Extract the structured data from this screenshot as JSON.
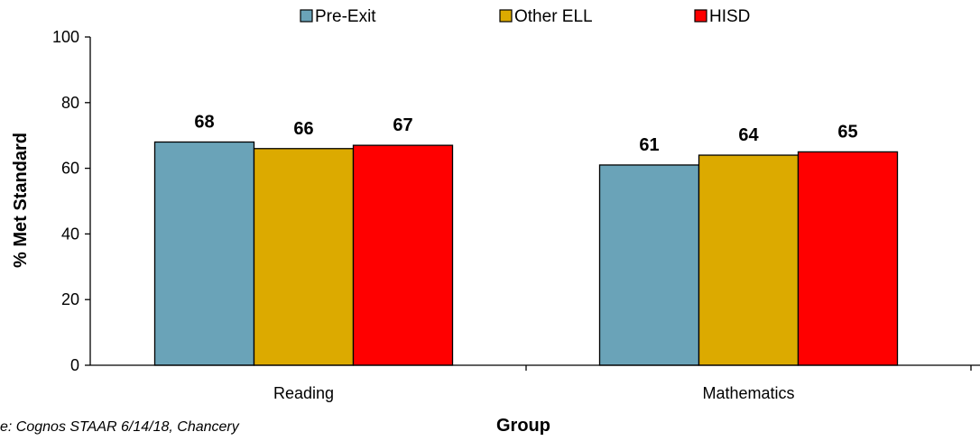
{
  "chart_data": {
    "type": "bar",
    "categories": [
      "Reading",
      "Mathematics"
    ],
    "series": [
      {
        "name": "Pre-Exit",
        "values": [
          68,
          61
        ],
        "color": "#6aa3b8"
      },
      {
        "name": "Other ELL",
        "values": [
          66,
          64
        ],
        "color": "#dcaa00"
      },
      {
        "name": "HISD",
        "values": [
          67,
          65
        ],
        "color": "#ff0000"
      }
    ],
    "title": "",
    "xlabel": "Group",
    "ylabel": "% Met Standard",
    "ylim": [
      0,
      100
    ],
    "yticks": [
      0,
      20,
      40,
      60,
      80,
      100
    ],
    "ytick_labels": [
      "0",
      "20",
      "40",
      "60",
      "80",
      "100"
    ],
    "grid": false,
    "legend_position": "top",
    "data_labels": true
  },
  "source_note": "e: Cognos STAAR 6/14/18, Chancery"
}
